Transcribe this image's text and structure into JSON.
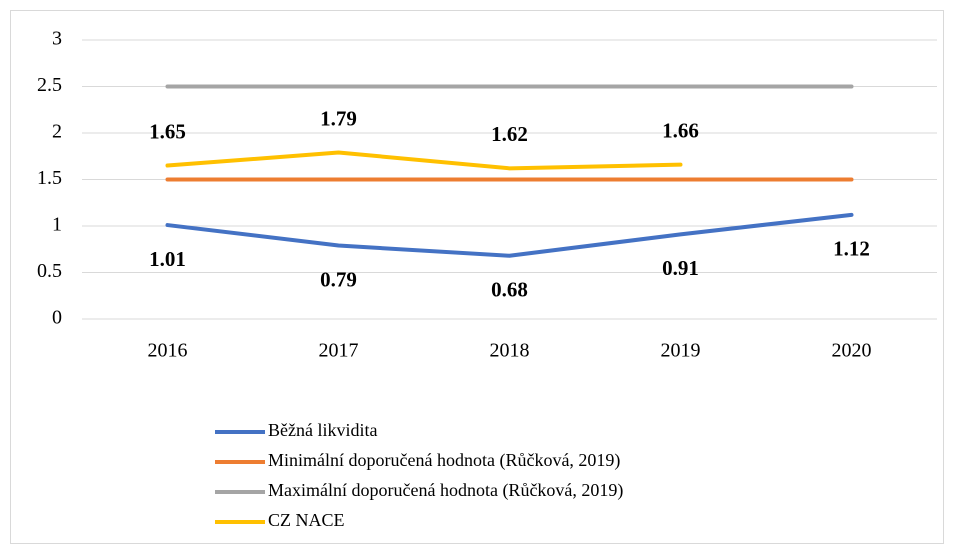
{
  "chart_data": {
    "type": "line",
    "categories": [
      "2016",
      "2017",
      "2018",
      "2019",
      "2020"
    ],
    "series": [
      {
        "name": "Běžná likvidita",
        "color": "#4472c4",
        "values": [
          1.01,
          0.79,
          0.68,
          0.91,
          1.12
        ],
        "data_labels": true,
        "label_position": "below"
      },
      {
        "name": "Minimální doporučená hodnota (Růčková, 2019)",
        "color": "#ed7d31",
        "values": [
          1.5,
          1.5,
          1.5,
          1.5,
          1.5
        ],
        "data_labels": false
      },
      {
        "name": "Maximální doporučená hodnota (Růčková, 2019)",
        "color": "#a5a5a5",
        "values": [
          2.5,
          2.5,
          2.5,
          2.5,
          2.5
        ],
        "data_labels": false
      },
      {
        "name": "CZ NACE",
        "color": "#ffc000",
        "values": [
          1.65,
          1.79,
          1.62,
          1.66,
          null
        ],
        "data_labels": true,
        "label_position": "above"
      }
    ],
    "ylim": [
      0,
      3
    ],
    "yticks": [
      0,
      0.5,
      1,
      1.5,
      2,
      2.5,
      3
    ],
    "grid": true,
    "legend": "bottom"
  }
}
